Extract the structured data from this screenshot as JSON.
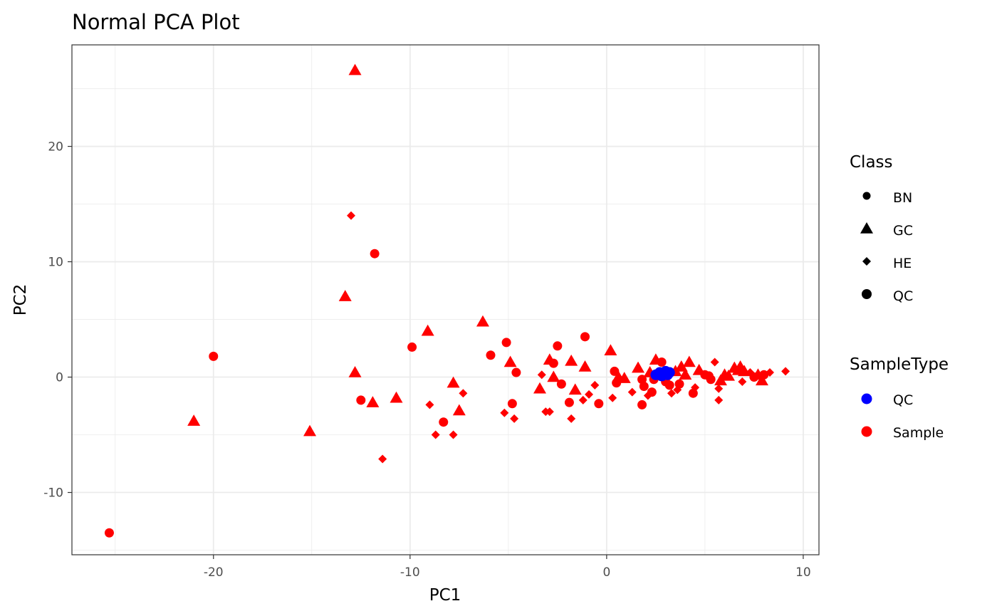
{
  "chart_data": {
    "type": "scatter",
    "title": "Normal PCA Plot",
    "xlabel": "PC1",
    "ylabel": "PC2",
    "xlim": [
      -27.2,
      10.8
    ],
    "ylim": [
      -15.4,
      28.8
    ],
    "xticks": [
      -20,
      -10,
      0,
      10
    ],
    "yticks": [
      -10,
      0,
      10,
      20
    ],
    "xtick_labels": [
      "-20",
      "-10",
      "0",
      "10"
    ],
    "ytick_labels": [
      "-10",
      "0",
      "10",
      "20"
    ],
    "grid": true,
    "legend_position": "right",
    "legend": {
      "class": {
        "title": "Class",
        "items": [
          {
            "label": "BN",
            "shape": "circle-small"
          },
          {
            "label": "GC",
            "shape": "triangle"
          },
          {
            "label": "HE",
            "shape": "diamond"
          },
          {
            "label": "QC",
            "shape": "circle"
          }
        ]
      },
      "sample_type": {
        "title": "SampleType",
        "items": [
          {
            "label": "QC",
            "color": "#0000ff"
          },
          {
            "label": "Sample",
            "color": "#ff0000"
          }
        ]
      }
    },
    "colors": {
      "QC": "#0000ff",
      "Sample": "#ff0000"
    },
    "points": [
      {
        "x": -12.8,
        "y": 26.6,
        "class": "GC",
        "type": "Sample"
      },
      {
        "x": -13.0,
        "y": 14.0,
        "class": "HE",
        "type": "Sample"
      },
      {
        "x": -11.8,
        "y": 10.7,
        "class": "BN",
        "type": "Sample"
      },
      {
        "x": -13.3,
        "y": 7.0,
        "class": "GC",
        "type": "Sample"
      },
      {
        "x": -20.0,
        "y": 1.8,
        "class": "BN",
        "type": "Sample"
      },
      {
        "x": -21.0,
        "y": -3.8,
        "class": "GC",
        "type": "Sample"
      },
      {
        "x": -15.1,
        "y": -4.7,
        "class": "GC",
        "type": "Sample"
      },
      {
        "x": -25.3,
        "y": -13.5,
        "class": "BN",
        "type": "Sample"
      },
      {
        "x": -12.8,
        "y": 0.4,
        "class": "GC",
        "type": "Sample"
      },
      {
        "x": -12.5,
        "y": -2.0,
        "class": "BN",
        "type": "Sample"
      },
      {
        "x": -11.9,
        "y": -2.2,
        "class": "GC",
        "type": "Sample"
      },
      {
        "x": -11.4,
        "y": -7.1,
        "class": "HE",
        "type": "Sample"
      },
      {
        "x": -10.7,
        "y": -1.8,
        "class": "GC",
        "type": "Sample"
      },
      {
        "x": -9.9,
        "y": 2.6,
        "class": "BN",
        "type": "Sample"
      },
      {
        "x": -9.1,
        "y": 4.0,
        "class": "GC",
        "type": "Sample"
      },
      {
        "x": -9.0,
        "y": -2.4,
        "class": "HE",
        "type": "Sample"
      },
      {
        "x": -8.7,
        "y": -5.0,
        "class": "HE",
        "type": "Sample"
      },
      {
        "x": -8.3,
        "y": -3.9,
        "class": "BN",
        "type": "Sample"
      },
      {
        "x": -7.8,
        "y": -0.5,
        "class": "GC",
        "type": "Sample"
      },
      {
        "x": -7.8,
        "y": -5.0,
        "class": "HE",
        "type": "Sample"
      },
      {
        "x": -7.5,
        "y": -2.9,
        "class": "GC",
        "type": "Sample"
      },
      {
        "x": -7.3,
        "y": -1.4,
        "class": "HE",
        "type": "Sample"
      },
      {
        "x": -6.3,
        "y": 4.8,
        "class": "GC",
        "type": "Sample"
      },
      {
        "x": -5.9,
        "y": 1.9,
        "class": "BN",
        "type": "Sample"
      },
      {
        "x": -5.2,
        "y": -3.1,
        "class": "HE",
        "type": "Sample"
      },
      {
        "x": -5.1,
        "y": 3.0,
        "class": "BN",
        "type": "Sample"
      },
      {
        "x": -4.9,
        "y": 1.3,
        "class": "GC",
        "type": "Sample"
      },
      {
        "x": -4.8,
        "y": -2.3,
        "class": "BN",
        "type": "Sample"
      },
      {
        "x": -4.7,
        "y": -3.6,
        "class": "HE",
        "type": "Sample"
      },
      {
        "x": -4.6,
        "y": 0.4,
        "class": "BN",
        "type": "Sample"
      },
      {
        "x": -3.4,
        "y": -1.0,
        "class": "GC",
        "type": "Sample"
      },
      {
        "x": -3.3,
        "y": 0.2,
        "class": "HE",
        "type": "Sample"
      },
      {
        "x": -3.1,
        "y": -3.0,
        "class": "HE",
        "type": "Sample"
      },
      {
        "x": -2.9,
        "y": -3.0,
        "class": "HE",
        "type": "Sample"
      },
      {
        "x": -2.9,
        "y": 1.5,
        "class": "GC",
        "type": "Sample"
      },
      {
        "x": -2.7,
        "y": 1.2,
        "class": "BN",
        "type": "Sample"
      },
      {
        "x": -2.7,
        "y": 0.0,
        "class": "GC",
        "type": "Sample"
      },
      {
        "x": -2.5,
        "y": 2.7,
        "class": "BN",
        "type": "Sample"
      },
      {
        "x": -2.3,
        "y": -0.6,
        "class": "BN",
        "type": "Sample"
      },
      {
        "x": -1.9,
        "y": -2.2,
        "class": "BN",
        "type": "Sample"
      },
      {
        "x": -1.8,
        "y": -3.6,
        "class": "HE",
        "type": "Sample"
      },
      {
        "x": -1.8,
        "y": 1.4,
        "class": "GC",
        "type": "Sample"
      },
      {
        "x": -1.6,
        "y": -1.1,
        "class": "GC",
        "type": "Sample"
      },
      {
        "x": -1.2,
        "y": -2.0,
        "class": "HE",
        "type": "Sample"
      },
      {
        "x": -1.1,
        "y": 3.5,
        "class": "BN",
        "type": "Sample"
      },
      {
        "x": -1.1,
        "y": 0.9,
        "class": "GC",
        "type": "Sample"
      },
      {
        "x": -0.9,
        "y": -1.5,
        "class": "HE",
        "type": "Sample"
      },
      {
        "x": -0.6,
        "y": -0.7,
        "class": "HE",
        "type": "Sample"
      },
      {
        "x": -0.4,
        "y": -2.3,
        "class": "BN",
        "type": "Sample"
      },
      {
        "x": 0.2,
        "y": 2.3,
        "class": "GC",
        "type": "Sample"
      },
      {
        "x": 0.3,
        "y": -1.8,
        "class": "HE",
        "type": "Sample"
      },
      {
        "x": 0.4,
        "y": 0.5,
        "class": "BN",
        "type": "Sample"
      },
      {
        "x": 0.5,
        "y": -0.5,
        "class": "BN",
        "type": "Sample"
      },
      {
        "x": 0.6,
        "y": 0.0,
        "class": "GC",
        "type": "Sample"
      },
      {
        "x": 0.9,
        "y": -0.1,
        "class": "GC",
        "type": "Sample"
      },
      {
        "x": 1.3,
        "y": -1.3,
        "class": "HE",
        "type": "Sample"
      },
      {
        "x": 1.6,
        "y": 0.8,
        "class": "GC",
        "type": "Sample"
      },
      {
        "x": 1.8,
        "y": -0.2,
        "class": "BN",
        "type": "Sample"
      },
      {
        "x": 1.8,
        "y": -2.4,
        "class": "BN",
        "type": "Sample"
      },
      {
        "x": 1.9,
        "y": -0.8,
        "class": "BN",
        "type": "Sample"
      },
      {
        "x": 2.1,
        "y": -1.6,
        "class": "HE",
        "type": "Sample"
      },
      {
        "x": 2.2,
        "y": 0.4,
        "class": "GC",
        "type": "Sample"
      },
      {
        "x": 2.3,
        "y": -1.3,
        "class": "BN",
        "type": "Sample"
      },
      {
        "x": 2.4,
        "y": -0.2,
        "class": "BN",
        "type": "Sample"
      },
      {
        "x": 2.5,
        "y": 1.5,
        "class": "GC",
        "type": "Sample"
      },
      {
        "x": 2.8,
        "y": 1.3,
        "class": "BN",
        "type": "Sample"
      },
      {
        "x": 3.0,
        "y": -0.4,
        "class": "BN",
        "type": "Sample"
      },
      {
        "x": 3.2,
        "y": -0.7,
        "class": "BN",
        "type": "Sample"
      },
      {
        "x": 3.3,
        "y": -1.4,
        "class": "HE",
        "type": "Sample"
      },
      {
        "x": 3.5,
        "y": 0.5,
        "class": "GC",
        "type": "Sample"
      },
      {
        "x": 3.6,
        "y": -1.1,
        "class": "HE",
        "type": "Sample"
      },
      {
        "x": 3.7,
        "y": -0.6,
        "class": "BN",
        "type": "Sample"
      },
      {
        "x": 3.8,
        "y": 0.9,
        "class": "GC",
        "type": "Sample"
      },
      {
        "x": 4.0,
        "y": 0.2,
        "class": "GC",
        "type": "Sample"
      },
      {
        "x": 4.2,
        "y": 1.3,
        "class": "GC",
        "type": "Sample"
      },
      {
        "x": 4.4,
        "y": -1.4,
        "class": "BN",
        "type": "Sample"
      },
      {
        "x": 4.5,
        "y": -0.9,
        "class": "HE",
        "type": "Sample"
      },
      {
        "x": 4.7,
        "y": 0.6,
        "class": "GC",
        "type": "Sample"
      },
      {
        "x": 5.0,
        "y": 0.2,
        "class": "BN",
        "type": "Sample"
      },
      {
        "x": 5.2,
        "y": 0.1,
        "class": "BN",
        "type": "Sample"
      },
      {
        "x": 5.3,
        "y": -0.2,
        "class": "BN",
        "type": "Sample"
      },
      {
        "x": 5.5,
        "y": 1.3,
        "class": "HE",
        "type": "Sample"
      },
      {
        "x": 5.7,
        "y": -1.0,
        "class": "HE",
        "type": "Sample"
      },
      {
        "x": 5.7,
        "y": -2.0,
        "class": "HE",
        "type": "Sample"
      },
      {
        "x": 5.8,
        "y": -0.3,
        "class": "GC",
        "type": "Sample"
      },
      {
        "x": 6.0,
        "y": 0.2,
        "class": "GC",
        "type": "Sample"
      },
      {
        "x": 6.2,
        "y": 0.1,
        "class": "GC",
        "type": "Sample"
      },
      {
        "x": 6.5,
        "y": 0.8,
        "class": "GC",
        "type": "Sample"
      },
      {
        "x": 6.7,
        "y": 0.6,
        "class": "GC",
        "type": "Sample"
      },
      {
        "x": 6.8,
        "y": 0.9,
        "class": "GC",
        "type": "Sample"
      },
      {
        "x": 6.9,
        "y": -0.4,
        "class": "HE",
        "type": "Sample"
      },
      {
        "x": 7.0,
        "y": 0.5,
        "class": "GC",
        "type": "Sample"
      },
      {
        "x": 7.3,
        "y": 0.4,
        "class": "HE",
        "type": "Sample"
      },
      {
        "x": 7.5,
        "y": 0.0,
        "class": "BN",
        "type": "Sample"
      },
      {
        "x": 7.7,
        "y": 0.2,
        "class": "GC",
        "type": "Sample"
      },
      {
        "x": 7.9,
        "y": -0.3,
        "class": "GC",
        "type": "Sample"
      },
      {
        "x": 8.0,
        "y": 0.2,
        "class": "BN",
        "type": "Sample"
      },
      {
        "x": 8.3,
        "y": 0.4,
        "class": "HE",
        "type": "Sample"
      },
      {
        "x": 9.1,
        "y": 0.5,
        "class": "HE",
        "type": "Sample"
      },
      {
        "x": 2.5,
        "y": 0.2,
        "class": "QC",
        "type": "QC"
      },
      {
        "x": 2.7,
        "y": 0.4,
        "class": "QC",
        "type": "QC"
      },
      {
        "x": 2.8,
        "y": 0.1,
        "class": "QC",
        "type": "QC"
      },
      {
        "x": 2.9,
        "y": 0.3,
        "class": "QC",
        "type": "QC"
      },
      {
        "x": 3.0,
        "y": 0.5,
        "class": "QC",
        "type": "QC"
      },
      {
        "x": 3.1,
        "y": 0.2,
        "class": "QC",
        "type": "QC"
      },
      {
        "x": 3.2,
        "y": 0.4,
        "class": "QC",
        "type": "QC"
      }
    ]
  }
}
